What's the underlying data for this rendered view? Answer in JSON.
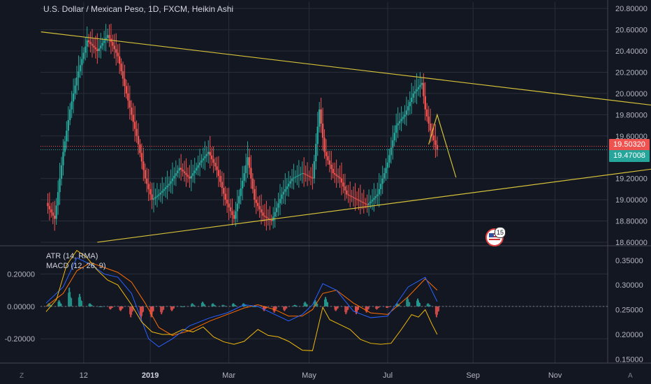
{
  "header": {
    "title": "U.S. Dollar / Mexican Peso, 1D, FXCM, Heikin Ashi"
  },
  "indicators": {
    "atr_label": "ATR (14, RMA)",
    "macd_label": "MACD (12, 26, 9)"
  },
  "price_tags": {
    "red": "19.50320",
    "teal": "19.47008"
  },
  "event": {
    "count": "15"
  },
  "corner": {
    "left": "Z",
    "right": "A"
  },
  "colors": {
    "bg": "#131722",
    "up": "#26a69a",
    "down": "#ef5350",
    "trend": "#d4c13a",
    "macd_line": "#2962ff",
    "signal": "#ff6d00",
    "atr": "#f0b90b",
    "grid": "#2a2e39"
  },
  "chart_data": [
    {
      "type": "candlestick",
      "title": "U.S. Dollar / Mexican Peso, 1D, FXCM, Heikin Ashi",
      "x_ticks": [
        "12",
        "2019",
        "Mar",
        "May",
        "Jul",
        "Sep",
        "Nov"
      ],
      "y_ticks": [
        "20.80000",
        "20.60000",
        "20.40000",
        "20.20000",
        "20.00000",
        "19.80000",
        "19.60000",
        "19.20000",
        "19.00000",
        "18.80000",
        "18.60000"
      ],
      "ylim": [
        18.58,
        20.86
      ],
      "grid": true,
      "price_path": [
        [
          0,
          18.97
        ],
        [
          5,
          18.82
        ],
        [
          10,
          19.45
        ],
        [
          14,
          19.85
        ],
        [
          18,
          20.15
        ],
        [
          24,
          20.5
        ],
        [
          30,
          20.4
        ],
        [
          36,
          20.55
        ],
        [
          42,
          20.35
        ],
        [
          47,
          20.0
        ],
        [
          53,
          19.6
        ],
        [
          58,
          19.2
        ],
        [
          62,
          19.0
        ],
        [
          66,
          19.05
        ],
        [
          72,
          19.15
        ],
        [
          78,
          19.3
        ],
        [
          84,
          19.2
        ],
        [
          90,
          19.35
        ],
        [
          95,
          19.45
        ],
        [
          100,
          19.28
        ],
        [
          105,
          19.0
        ],
        [
          110,
          18.82
        ],
        [
          116,
          19.25
        ],
        [
          118,
          19.4
        ],
        [
          122,
          19.0
        ],
        [
          127,
          18.85
        ],
        [
          132,
          18.8
        ],
        [
          138,
          19.05
        ],
        [
          144,
          19.2
        ],
        [
          150,
          19.25
        ],
        [
          156,
          19.2
        ],
        [
          160,
          19.85
        ],
        [
          163,
          19.45
        ],
        [
          168,
          19.25
        ],
        [
          172,
          19.2
        ],
        [
          176,
          19.05
        ],
        [
          182,
          19.0
        ],
        [
          188,
          18.95
        ],
        [
          194,
          19.05
        ],
        [
          200,
          19.35
        ],
        [
          205,
          19.7
        ],
        [
          210,
          19.8
        ],
        [
          215,
          20.0
        ],
        [
          220,
          20.1
        ],
        [
          222,
          19.85
        ],
        [
          225,
          19.65
        ],
        [
          229,
          19.47
        ]
      ],
      "trendlines": [
        {
          "x": [
            -3,
            360
          ],
          "y": [
            20.58,
            19.88
          ]
        },
        {
          "x": [
            30,
            360
          ],
          "y": [
            18.6,
            19.3
          ]
        },
        {
          "x": [
            224,
            229,
            240
          ],
          "y": [
            19.52,
            19.8,
            19.21
          ]
        }
      ],
      "last_prices": [
        19.5032,
        19.47008
      ]
    },
    {
      "type": "line",
      "labels": [
        "ATR (14, RMA)",
        "MACD (12, 26, 9)"
      ],
      "left_ticks": [
        "0.20000",
        "0.00000",
        "-0.20000"
      ],
      "right_ticks": [
        "0.35000",
        "0.30000",
        "0.25000",
        "0.20000",
        "0.15000"
      ],
      "macd_ylim": [
        -0.35,
        0.37
      ],
      "atr_ylim": [
        0.142,
        0.378
      ],
      "macd": [
        [
          0,
          0.02
        ],
        [
          10,
          0.12
        ],
        [
          18,
          0.3
        ],
        [
          26,
          0.26
        ],
        [
          34,
          0.2
        ],
        [
          42,
          0.18
        ],
        [
          50,
          0.08
        ],
        [
          55,
          -0.06
        ],
        [
          60,
          -0.2
        ],
        [
          66,
          -0.25
        ],
        [
          74,
          -0.2
        ],
        [
          84,
          -0.12
        ],
        [
          96,
          -0.07
        ],
        [
          106,
          -0.04
        ],
        [
          116,
          0.01
        ],
        [
          124,
          0.0
        ],
        [
          134,
          -0.05
        ],
        [
          142,
          -0.09
        ],
        [
          150,
          -0.05
        ],
        [
          156,
          0.01
        ],
        [
          162,
          0.14
        ],
        [
          170,
          0.1
        ],
        [
          180,
          -0.03
        ],
        [
          190,
          -0.07
        ],
        [
          200,
          -0.06
        ],
        [
          212,
          0.12
        ],
        [
          222,
          0.18
        ],
        [
          229,
          0.03
        ]
      ],
      "signal": [
        [
          0,
          0.0
        ],
        [
          10,
          0.08
        ],
        [
          18,
          0.22
        ],
        [
          26,
          0.27
        ],
        [
          34,
          0.24
        ],
        [
          42,
          0.21
        ],
        [
          50,
          0.15
        ],
        [
          58,
          0.02
        ],
        [
          66,
          -0.13
        ],
        [
          74,
          -0.18
        ],
        [
          84,
          -0.15
        ],
        [
          96,
          -0.09
        ],
        [
          106,
          -0.05
        ],
        [
          116,
          -0.01
        ],
        [
          124,
          0.01
        ],
        [
          134,
          -0.02
        ],
        [
          142,
          -0.06
        ],
        [
          150,
          -0.06
        ],
        [
          156,
          -0.02
        ],
        [
          162,
          0.08
        ],
        [
          170,
          0.1
        ],
        [
          180,
          0.02
        ],
        [
          190,
          -0.04
        ],
        [
          200,
          -0.05
        ],
        [
          212,
          0.06
        ],
        [
          222,
          0.17
        ],
        [
          229,
          0.1
        ]
      ],
      "histogram": [
        [
          2,
          0.02
        ],
        [
          8,
          0.04
        ],
        [
          14,
          0.12
        ],
        [
          20,
          0.08
        ],
        [
          26,
          0.02
        ],
        [
          32,
          0.0
        ],
        [
          38,
          -0.02
        ],
        [
          44,
          -0.03
        ],
        [
          50,
          -0.07
        ],
        [
          56,
          -0.08
        ],
        [
          62,
          -0.07
        ],
        [
          68,
          -0.05
        ],
        [
          74,
          -0.03
        ],
        [
          80,
          0.0
        ],
        [
          86,
          0.02
        ],
        [
          92,
          0.03
        ],
        [
          98,
          0.02
        ],
        [
          104,
          0.01
        ],
        [
          110,
          0.02
        ],
        [
          116,
          0.02
        ],
        [
          122,
          0.0
        ],
        [
          128,
          -0.03
        ],
        [
          134,
          -0.04
        ],
        [
          140,
          -0.03
        ],
        [
          146,
          0.01
        ],
        [
          152,
          0.03
        ],
        [
          158,
          0.04
        ],
        [
          164,
          0.06
        ],
        [
          170,
          -0.03
        ],
        [
          176,
          -0.05
        ],
        [
          182,
          -0.05
        ],
        [
          188,
          -0.04
        ],
        [
          194,
          -0.02
        ],
        [
          200,
          -0.01
        ],
        [
          206,
          0.02
        ],
        [
          212,
          0.06
        ],
        [
          218,
          0.05
        ],
        [
          224,
          0.02
        ],
        [
          229,
          -0.07
        ]
      ],
      "atr": [
        [
          0,
          0.246
        ],
        [
          6,
          0.27
        ],
        [
          12,
          0.34
        ],
        [
          18,
          0.37
        ],
        [
          24,
          0.355
        ],
        [
          30,
          0.33
        ],
        [
          36,
          0.31
        ],
        [
          42,
          0.3
        ],
        [
          50,
          0.26
        ],
        [
          56,
          0.225
        ],
        [
          62,
          0.205
        ],
        [
          68,
          0.2
        ],
        [
          74,
          0.2
        ],
        [
          80,
          0.21
        ],
        [
          86,
          0.205
        ],
        [
          92,
          0.215
        ],
        [
          98,
          0.195
        ],
        [
          104,
          0.185
        ],
        [
          110,
          0.18
        ],
        [
          116,
          0.186
        ],
        [
          124,
          0.21
        ],
        [
          130,
          0.198
        ],
        [
          136,
          0.195
        ],
        [
          142,
          0.186
        ],
        [
          150,
          0.168
        ],
        [
          156,
          0.167
        ],
        [
          162,
          0.255
        ],
        [
          166,
          0.23
        ],
        [
          172,
          0.22
        ],
        [
          178,
          0.21
        ],
        [
          184,
          0.19
        ],
        [
          190,
          0.182
        ],
        [
          196,
          0.18
        ],
        [
          202,
          0.182
        ],
        [
          208,
          0.21
        ],
        [
          214,
          0.24
        ],
        [
          218,
          0.235
        ],
        [
          222,
          0.25
        ],
        [
          226,
          0.22
        ],
        [
          229,
          0.2
        ]
      ]
    }
  ]
}
